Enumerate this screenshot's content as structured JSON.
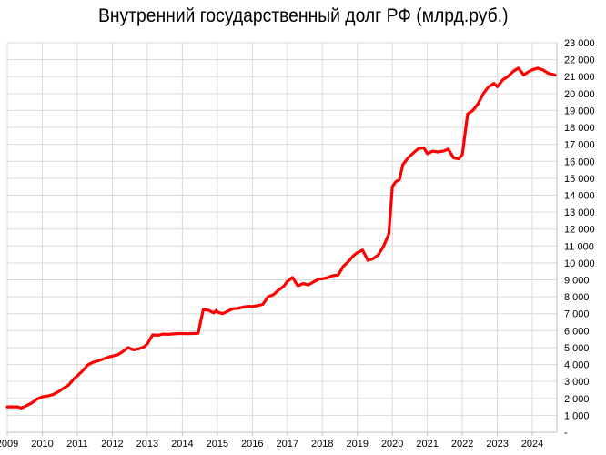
{
  "chart_data": {
    "type": "line",
    "title": "Внутренний государственный долг РФ (млрд.руб.)",
    "xlabel": "",
    "ylabel": "",
    "x_ticks": [
      "2009",
      "2010",
      "2011",
      "2012",
      "2013",
      "2014",
      "2015",
      "2016",
      "2017",
      "2018",
      "2019",
      "2020",
      "2021",
      "2022",
      "2023",
      "2024"
    ],
    "y_ticks": [
      "-",
      "1 000",
      "2 000",
      "3 000",
      "4 000",
      "5 000",
      "6 000",
      "7 000",
      "8 000",
      "9 000",
      "10 000",
      "11 000",
      "12 000",
      "13 000",
      "14 000",
      "15 000",
      "16 000",
      "17 000",
      "18 000",
      "19 000",
      "20 000",
      "21 000",
      "22 000",
      "23 000"
    ],
    "xlim": [
      2009,
      2024.7
    ],
    "ylim": [
      0,
      23000
    ],
    "grid": true,
    "axis_position": "right",
    "color": "#ff0000",
    "series": [
      {
        "name": "",
        "x": [
          2009.0,
          2009.3,
          2009.4,
          2009.55,
          2009.7,
          2009.85,
          2010.0,
          2010.15,
          2010.3,
          2010.45,
          2010.6,
          2010.75,
          2010.9,
          2011.0,
          2011.15,
          2011.3,
          2011.45,
          2011.6,
          2011.75,
          2011.9,
          2012.0,
          2012.15,
          2012.3,
          2012.45,
          2012.6,
          2012.75,
          2012.9,
          2013.0,
          2013.15,
          2013.3,
          2013.45,
          2013.6,
          2013.75,
          2013.9,
          2014.0,
          2014.15,
          2014.3,
          2014.45,
          2014.6,
          2014.75,
          2014.9,
          2014.97,
          2015.0,
          2015.15,
          2015.3,
          2015.45,
          2015.6,
          2015.75,
          2015.9,
          2016.0,
          2016.15,
          2016.3,
          2016.45,
          2016.6,
          2016.75,
          2016.9,
          2017.0,
          2017.15,
          2017.3,
          2017.45,
          2017.6,
          2017.75,
          2017.9,
          2018.0,
          2018.15,
          2018.3,
          2018.45,
          2018.6,
          2018.75,
          2018.9,
          2019.0,
          2019.15,
          2019.3,
          2019.45,
          2019.6,
          2019.75,
          2019.9,
          2020.0,
          2020.1,
          2020.2,
          2020.3,
          2020.45,
          2020.6,
          2020.75,
          2020.9,
          2021.0,
          2021.15,
          2021.3,
          2021.45,
          2021.6,
          2021.75,
          2021.9,
          2022.0,
          2022.15,
          2022.3,
          2022.45,
          2022.6,
          2022.75,
          2022.9,
          2023.0,
          2023.15,
          2023.3,
          2023.45,
          2023.6,
          2023.75,
          2023.9,
          2024.0,
          2024.15,
          2024.3,
          2024.45,
          2024.55,
          2024.65
        ],
        "y": [
          1500,
          1500,
          1430,
          1570,
          1730,
          1960,
          2090,
          2140,
          2220,
          2380,
          2590,
          2780,
          3150,
          3320,
          3620,
          3970,
          4130,
          4220,
          4330,
          4440,
          4500,
          4570,
          4760,
          5000,
          4870,
          4930,
          5030,
          5220,
          5750,
          5730,
          5800,
          5780,
          5810,
          5830,
          5830,
          5820,
          5830,
          5840,
          7250,
          7200,
          7050,
          7200,
          7100,
          7000,
          7150,
          7300,
          7320,
          7400,
          7440,
          7420,
          7480,
          7550,
          8000,
          8120,
          8400,
          8620,
          8910,
          9140,
          8650,
          8780,
          8700,
          8880,
          9050,
          9060,
          9130,
          9250,
          9280,
          9800,
          10100,
          10450,
          10600,
          10760,
          10150,
          10250,
          10480,
          11000,
          11700,
          14500,
          14800,
          14900,
          15800,
          16200,
          16500,
          16750,
          16800,
          16450,
          16600,
          16550,
          16600,
          16720,
          16200,
          16150,
          16400,
          18800,
          19000,
          19400,
          20000,
          20400,
          20600,
          20400,
          20800,
          21000,
          21300,
          21500,
          21100,
          21300,
          21400,
          21500,
          21400,
          21200,
          21150,
          21100
        ]
      }
    ]
  }
}
